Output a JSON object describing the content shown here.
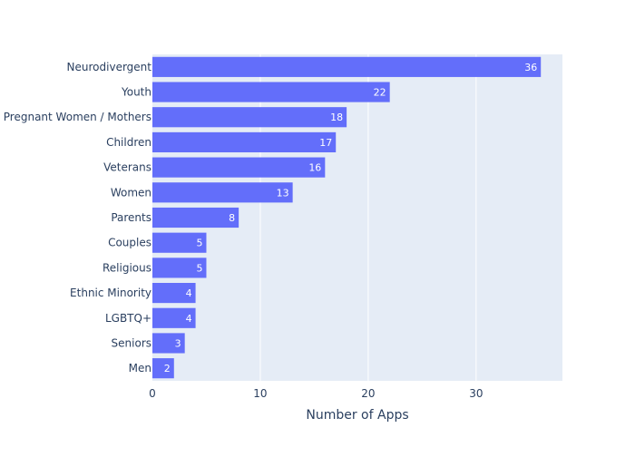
{
  "chart_data": {
    "type": "bar",
    "orientation": "horizontal",
    "title": "",
    "xlabel": "Number of Apps",
    "ylabel": "",
    "categories": [
      "Neurodivergent",
      "Youth",
      "Pregnant Women / Mothers",
      "Children",
      "Veterans",
      "Women",
      "Parents",
      "Couples",
      "Religious",
      "Ethnic Minority",
      "LGBTQ+",
      "Seniors",
      "Men"
    ],
    "values": [
      36,
      22,
      18,
      17,
      16,
      13,
      8,
      5,
      5,
      4,
      4,
      3,
      2
    ],
    "xlim": [
      0,
      38
    ],
    "xticks": [
      0,
      10,
      20,
      30
    ],
    "grid": true,
    "colors": {
      "bar": "#636efa",
      "plot_bg": "#e5ecf6",
      "grid": "#ffffff",
      "text": "#2a3f5f",
      "bar_label": "#ffffff"
    }
  }
}
